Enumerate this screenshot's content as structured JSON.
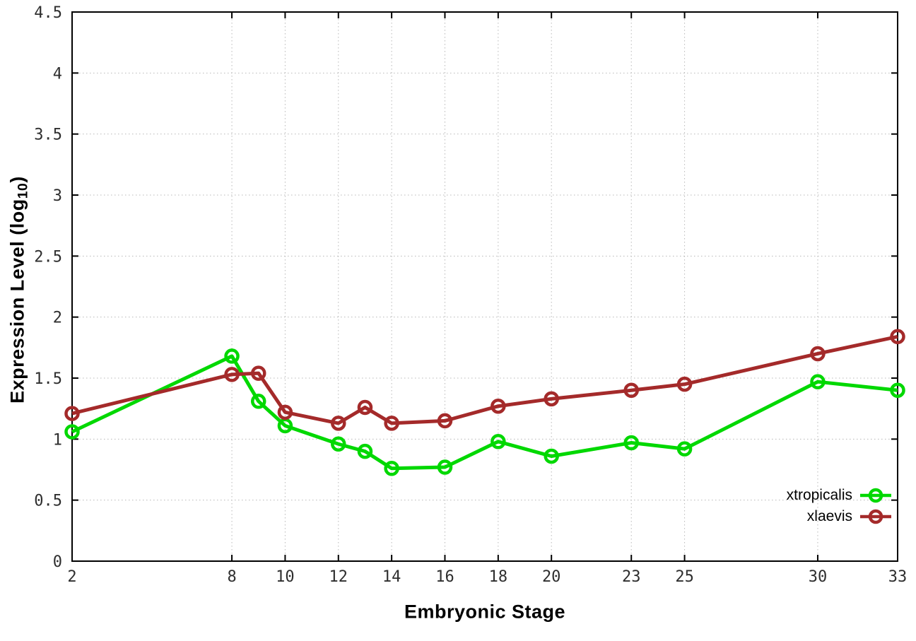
{
  "chart_data": {
    "type": "line",
    "title": "",
    "xlabel": "Embryonic Stage",
    "ylabel": {
      "prefix": "Expression Level (log",
      "sub": "10",
      "suffix": ")"
    },
    "xlim": [
      2,
      33
    ],
    "ylim": [
      0,
      4.5
    ],
    "x_ticks": [
      2,
      8,
      10,
      12,
      14,
      16,
      18,
      20,
      23,
      25,
      30,
      33
    ],
    "y_ticks": [
      0,
      0.5,
      1,
      1.5,
      2,
      2.5,
      3,
      3.5,
      4,
      4.5
    ],
    "grid": true,
    "legend_position": "inside-bottom-right",
    "x": [
      2,
      8,
      9,
      10,
      12,
      13,
      14,
      16,
      18,
      20,
      23,
      25,
      30,
      33
    ],
    "series": [
      {
        "name": "xtropicalis",
        "color": "#00d800",
        "values": [
          1.06,
          1.68,
          1.31,
          1.11,
          0.96,
          0.9,
          0.76,
          0.77,
          0.98,
          0.86,
          0.97,
          0.92,
          1.47,
          1.4
        ]
      },
      {
        "name": "xlaevis",
        "color": "#a42a2a",
        "values": [
          1.21,
          1.53,
          1.54,
          1.22,
          1.13,
          1.26,
          1.13,
          1.15,
          1.27,
          1.33,
          1.4,
          1.45,
          1.7,
          1.84
        ]
      }
    ],
    "axis_color": "#000000",
    "grid_color": "#b8b8b8",
    "tick_label_color": "#2e2e2e"
  }
}
